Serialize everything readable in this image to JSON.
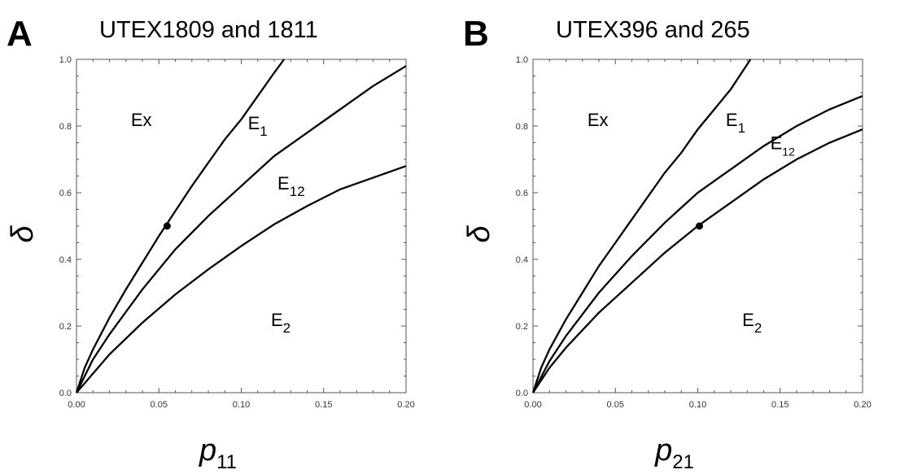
{
  "chart_data": [
    {
      "type": "line",
      "panel_label": "A",
      "title": "UTEX1809 and 1811",
      "xlabel_main": "p",
      "xlabel_sub": "11",
      "ylabel": "δ",
      "xlim": [
        0,
        0.2
      ],
      "ylim": [
        0,
        1.0
      ],
      "xticks": [
        0.0,
        0.05,
        0.1,
        0.15,
        0.2
      ],
      "xtick_labels": [
        "0.00",
        "0.05",
        "0.10",
        "0.15",
        "0.20"
      ],
      "yticks": [
        0.0,
        0.2,
        0.4,
        0.6,
        0.8,
        1.0
      ],
      "ytick_labels": [
        "0.0",
        "0.2",
        "0.4",
        "0.6",
        "0.8",
        "1.0"
      ],
      "series": [
        {
          "x": [
            0,
            0.005,
            0.01,
            0.02,
            0.03,
            0.04,
            0.05,
            0.06,
            0.07,
            0.08,
            0.09,
            0.1,
            0.11,
            0.12,
            0.126
          ],
          "y": [
            0,
            0.075,
            0.13,
            0.225,
            0.31,
            0.39,
            0.47,
            0.545,
            0.62,
            0.69,
            0.76,
            0.82,
            0.89,
            0.96,
            1.0
          ]
        },
        {
          "x": [
            0,
            0.01,
            0.02,
            0.04,
            0.06,
            0.08,
            0.1,
            0.12,
            0.14,
            0.16,
            0.18,
            0.2
          ],
          "y": [
            0,
            0.1,
            0.175,
            0.31,
            0.43,
            0.53,
            0.62,
            0.71,
            0.78,
            0.85,
            0.92,
            0.98
          ]
        },
        {
          "x": [
            0,
            0.02,
            0.04,
            0.06,
            0.08,
            0.1,
            0.12,
            0.14,
            0.16,
            0.18,
            0.2
          ],
          "y": [
            0,
            0.115,
            0.21,
            0.295,
            0.37,
            0.44,
            0.505,
            0.56,
            0.61,
            0.645,
            0.68
          ]
        }
      ],
      "points": [
        {
          "x": 0.055,
          "y": 0.5
        }
      ],
      "region_labels": [
        {
          "text": "Ex",
          "sub": "",
          "x": 0.033,
          "y": 0.8
        },
        {
          "text": "E",
          "sub": "1",
          "x": 0.104,
          "y": 0.79
        },
        {
          "text": "E",
          "sub": "12",
          "x": 0.122,
          "y": 0.61
        },
        {
          "text": "E",
          "sub": "2",
          "x": 0.118,
          "y": 0.2
        }
      ]
    },
    {
      "type": "line",
      "panel_label": "B",
      "title": "UTEX396 and 265",
      "xlabel_main": "p",
      "xlabel_sub": "21",
      "ylabel": "δ",
      "xlim": [
        0,
        0.2
      ],
      "ylim": [
        0,
        1.0
      ],
      "xticks": [
        0.0,
        0.05,
        0.1,
        0.15,
        0.2
      ],
      "xtick_labels": [
        "0.00",
        "0.05",
        "0.10",
        "0.15",
        "0.20"
      ],
      "yticks": [
        0.0,
        0.2,
        0.4,
        0.6,
        0.8,
        1.0
      ],
      "ytick_labels": [
        "0.0",
        "0.2",
        "0.4",
        "0.6",
        "0.8",
        "1.0"
      ],
      "series": [
        {
          "x": [
            0,
            0.005,
            0.01,
            0.02,
            0.03,
            0.04,
            0.05,
            0.06,
            0.07,
            0.08,
            0.09,
            0.1,
            0.11,
            0.12,
            0.132
          ],
          "y": [
            0,
            0.075,
            0.13,
            0.22,
            0.3,
            0.38,
            0.45,
            0.52,
            0.59,
            0.66,
            0.72,
            0.79,
            0.85,
            0.91,
            1.0
          ]
        },
        {
          "x": [
            0,
            0.01,
            0.02,
            0.04,
            0.06,
            0.08,
            0.1,
            0.12,
            0.14,
            0.16,
            0.18,
            0.2
          ],
          "y": [
            0,
            0.095,
            0.17,
            0.3,
            0.41,
            0.51,
            0.6,
            0.67,
            0.74,
            0.8,
            0.85,
            0.89
          ]
        },
        {
          "x": [
            0,
            0.01,
            0.02,
            0.04,
            0.06,
            0.08,
            0.1,
            0.12,
            0.14,
            0.16,
            0.18,
            0.2
          ],
          "y": [
            0,
            0.075,
            0.135,
            0.24,
            0.33,
            0.42,
            0.5,
            0.57,
            0.64,
            0.7,
            0.75,
            0.79
          ]
        }
      ],
      "points": [
        {
          "x": 0.101,
          "y": 0.5
        }
      ],
      "region_labels": [
        {
          "text": "Ex",
          "sub": "",
          "x": 0.033,
          "y": 0.8
        },
        {
          "text": "E",
          "sub": "1",
          "x": 0.117,
          "y": 0.8
        },
        {
          "text": "E",
          "sub": "12",
          "x": 0.144,
          "y": 0.73
        },
        {
          "text": "E",
          "sub": "2",
          "x": 0.127,
          "y": 0.2
        }
      ]
    }
  ]
}
